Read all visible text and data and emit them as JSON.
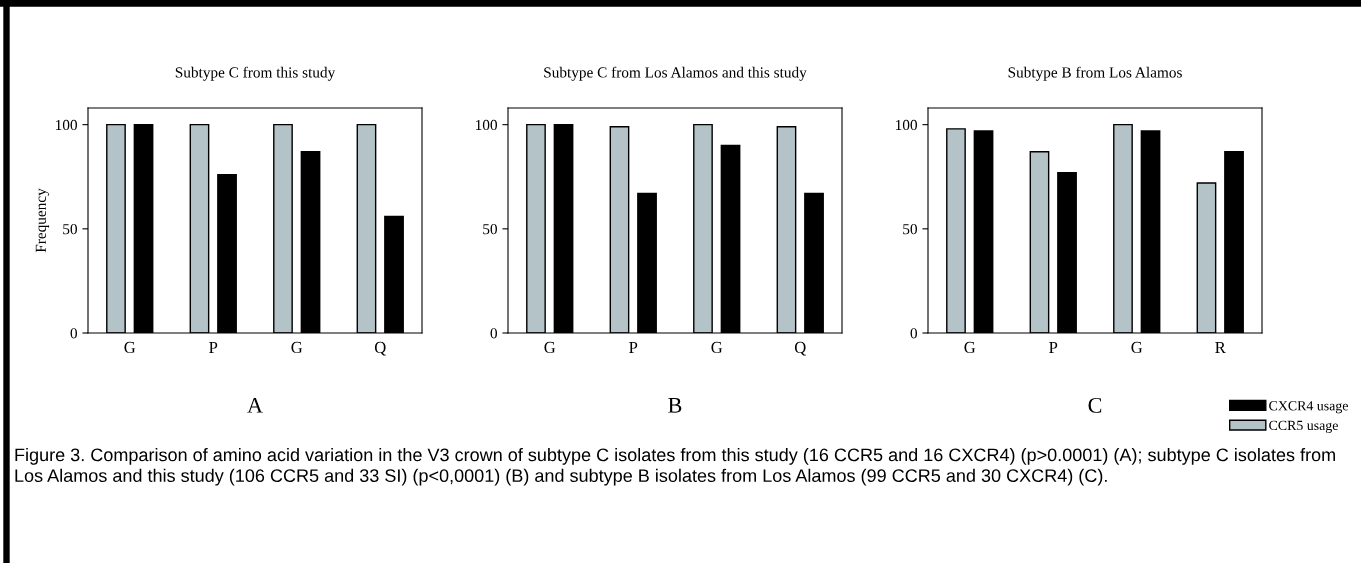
{
  "chart_data": [
    {
      "type": "bar",
      "title": "Subtype C from this study",
      "ylabel": "Frequency",
      "categories": [
        "G",
        "P",
        "G",
        "Q"
      ],
      "ylim": [
        0,
        108
      ],
      "yticks": [
        0,
        50,
        100
      ],
      "grid": false,
      "legend": false,
      "annotations": [
        "A"
      ],
      "series": [
        {
          "color": "#b4c3c8",
          "values": [
            100,
            100,
            100,
            100
          ]
        },
        {
          "color": "#000000",
          "values": [
            100,
            76,
            87,
            56
          ]
        }
      ]
    },
    {
      "type": "bar",
      "title": "Subtype C from Los Alamos and this study",
      "categories": [
        "G",
        "P",
        "G",
        "Q"
      ],
      "ylim": [
        0,
        108
      ],
      "yticks": [
        0,
        50,
        100
      ],
      "grid": false,
      "legend": false,
      "annotations": [
        "B"
      ],
      "series": [
        {
          "color": "#b4c3c8",
          "values": [
            100,
            99,
            100,
            99
          ]
        },
        {
          "color": "#000000",
          "values": [
            100,
            67,
            90,
            67
          ]
        }
      ]
    },
    {
      "type": "bar",
      "title": "Subtype B from Los Alamos",
      "categories": [
        "G",
        "P",
        "G",
        "R"
      ],
      "ylim": [
        0,
        108
      ],
      "yticks": [
        0,
        50,
        100
      ],
      "grid": false,
      "legend": "bottom right",
      "annotations": [
        "C",
        "Figure 3. Comparison of amino acid variation in the V3 crown of subtype C isolates from this study (16 CCR5 and 16 CXCR4) (p>0.0001) (A); subtype C isolates from Los Alamos and this study (106 CCR5 and 33 SI) (p<0,0001) (B) and subtype B isolates from Los Alamos (99 CCR5 and 30 CXCR4) (C)."
      ],
      "series": [
        {
          "name": "CCR5 usage",
          "color": "#b4c3c8",
          "values": [
            98,
            87,
            100,
            72
          ]
        },
        {
          "name": "CXCR4 usage",
          "color": "#000000",
          "values": [
            97,
            77,
            97,
            87
          ]
        }
      ]
    }
  ]
}
